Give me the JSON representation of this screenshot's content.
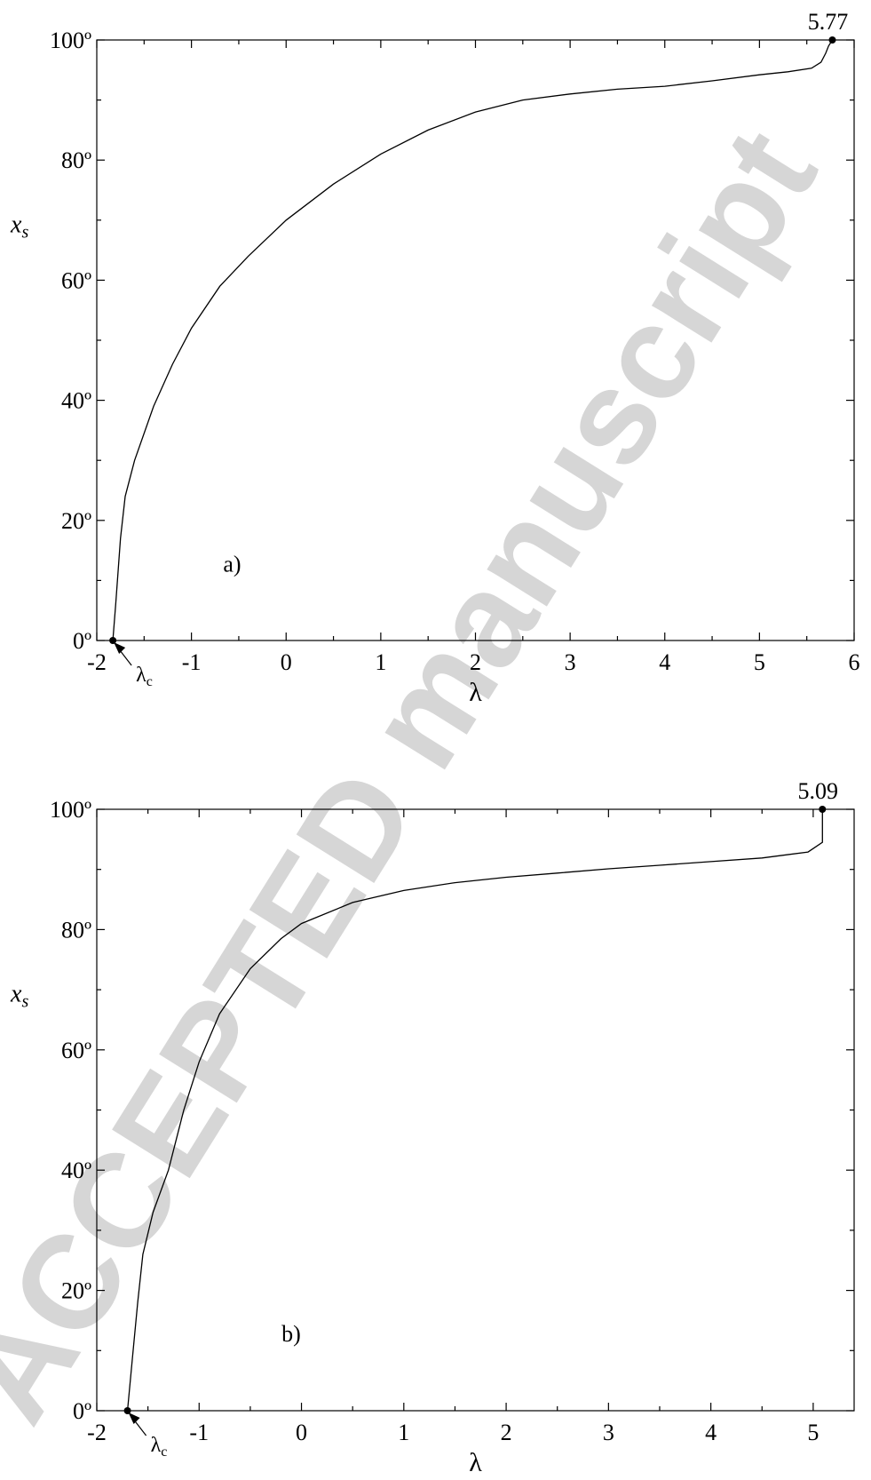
{
  "watermark": "ACCEPTED manuscript",
  "chart_data": [
    {
      "type": "line",
      "panel_label": "a)",
      "xlabel": "λ",
      "ylabel": "x",
      "ylabel_sub": "s",
      "xlim": [
        -2,
        6
      ],
      "ylim": [
        0,
        100
      ],
      "x_ticks": [
        -2,
        -1,
        0,
        1,
        2,
        3,
        4,
        5,
        6
      ],
      "x_tick_labels": [
        "-2",
        "-1",
        "0",
        "1",
        "2",
        "3",
        "4",
        "5",
        "6"
      ],
      "y_ticks": [
        0,
        20,
        40,
        60,
        80,
        100
      ],
      "y_tick_labels": [
        "0º",
        "20º",
        "40º",
        "60º",
        "80º",
        "100º"
      ],
      "end_label": "5.77",
      "lambda_c_label": "λ",
      "lambda_c_sub": "c",
      "lambda_c_value": -1.83,
      "series": [
        {
          "x": [
            -1.83,
            -1.8,
            -1.75,
            -1.7,
            -1.6,
            -1.4,
            -1.2,
            -1.0,
            -0.7,
            -0.4,
            0.0,
            0.5,
            1.0,
            1.5,
            2.0,
            2.5,
            3.0,
            3.5,
            4.0,
            4.5,
            5.0,
            5.3,
            5.55,
            5.65,
            5.7,
            5.73,
            5.77
          ],
          "y": [
            0,
            6,
            17,
            24,
            30,
            39,
            46,
            52,
            59,
            64,
            70,
            76,
            81,
            85,
            88,
            90,
            91,
            91.8,
            92.3,
            93.2,
            94.2,
            94.7,
            95.3,
            96.3,
            97.8,
            99,
            100
          ]
        }
      ],
      "markers": [
        {
          "x": -1.83,
          "y": 0
        },
        {
          "x": 5.77,
          "y": 100
        }
      ]
    },
    {
      "type": "line",
      "panel_label": "b)",
      "xlabel": "λ",
      "ylabel": "x",
      "ylabel_sub": "s",
      "xlim": [
        -2,
        5.4
      ],
      "ylim": [
        0,
        100
      ],
      "x_ticks": [
        -2,
        -1,
        0,
        1,
        2,
        3,
        4,
        5
      ],
      "x_tick_labels": [
        "-2",
        "-1",
        "0",
        "1",
        "2",
        "3",
        "4",
        "5"
      ],
      "y_ticks": [
        0,
        20,
        40,
        60,
        80,
        100
      ],
      "y_tick_labels": [
        "0º",
        "20º",
        "40º",
        "60º",
        "80º",
        "100º"
      ],
      "end_label": "5.09",
      "lambda_c_label": "λ",
      "lambda_c_sub": "c",
      "lambda_c_value": -1.7,
      "series": [
        {
          "x": [
            -1.7,
            -1.65,
            -1.6,
            -1.55,
            -1.45,
            -1.3,
            -1.15,
            -1.0,
            -0.8,
            -0.5,
            -0.2,
            0.0,
            0.5,
            1.0,
            1.5,
            2.0,
            2.5,
            3.0,
            3.5,
            4.0,
            4.5,
            4.95,
            5.09,
            5.09
          ],
          "y": [
            0,
            9,
            18,
            26,
            33,
            40,
            50,
            58,
            66,
            73.5,
            78.5,
            81,
            84.5,
            86.5,
            87.8,
            88.7,
            89.4,
            90.1,
            90.7,
            91.3,
            91.9,
            92.9,
            94.5,
            100
          ]
        }
      ],
      "markers": [
        {
          "x": -1.7,
          "y": 0
        },
        {
          "x": 5.09,
          "y": 100
        }
      ]
    }
  ]
}
